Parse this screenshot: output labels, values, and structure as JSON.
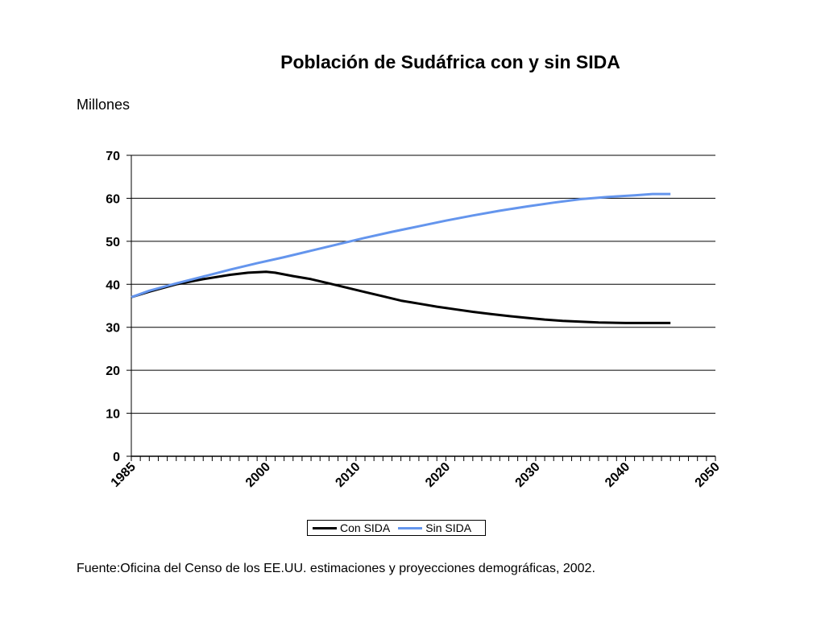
{
  "title": "Población de Sudáfrica con y sin SIDA",
  "unit_label": "Millones",
  "source": "Fuente:Oficina del Censo de los EE.UU. estimaciones y proyecciones demográficas, 2002.",
  "colors": {
    "con_sida": "#000000",
    "sin_sida": "#6495ED"
  },
  "chart_data": {
    "type": "line",
    "title": "Población de Sudáfrica con y sin SIDA",
    "ylabel": "Millones",
    "xlabel": "",
    "xlim": [
      1985,
      2050
    ],
    "ylim": [
      0,
      70
    ],
    "y_ticks": [
      0,
      10,
      20,
      30,
      40,
      50,
      60,
      70
    ],
    "x_tick_labels": [
      1985,
      2000,
      2010,
      2020,
      2030,
      2040,
      2050
    ],
    "grid": "horizontal",
    "legend_position": "bottom",
    "series": [
      {
        "name": "Con SIDA",
        "color": "#000000",
        "x": [
          1985,
          1987,
          1990,
          1993,
          1996,
          1998,
          2000,
          2001,
          2003,
          2005,
          2007,
          2009,
          2011,
          2013,
          2015,
          2017,
          2019,
          2021,
          2023,
          2025,
          2027,
          2029,
          2031,
          2033,
          2035,
          2037,
          2040,
          2043,
          2045
        ],
        "y": [
          37,
          38.3,
          40,
          41.2,
          42.2,
          42.7,
          42.9,
          42.7,
          41.9,
          41.2,
          40.2,
          39.2,
          38.2,
          37.2,
          36.2,
          35.5,
          34.8,
          34.2,
          33.6,
          33.1,
          32.6,
          32.2,
          31.8,
          31.5,
          31.3,
          31.1,
          31,
          31,
          31
        ]
      },
      {
        "name": "Sin SIDA",
        "color": "#6495ED",
        "x": [
          1985,
          1987,
          1990,
          1993,
          1996,
          1999,
          2002,
          2005,
          2008,
          2011,
          2014,
          2017,
          2020,
          2023,
          2026,
          2029,
          2032,
          2035,
          2038,
          2041,
          2043,
          2045
        ],
        "y": [
          37,
          38.5,
          40.2,
          41.8,
          43.4,
          44.9,
          46.3,
          47.8,
          49.3,
          50.8,
          52.2,
          53.5,
          54.8,
          56,
          57.1,
          58.1,
          59,
          59.8,
          60.3,
          60.7,
          61,
          61
        ]
      }
    ]
  }
}
